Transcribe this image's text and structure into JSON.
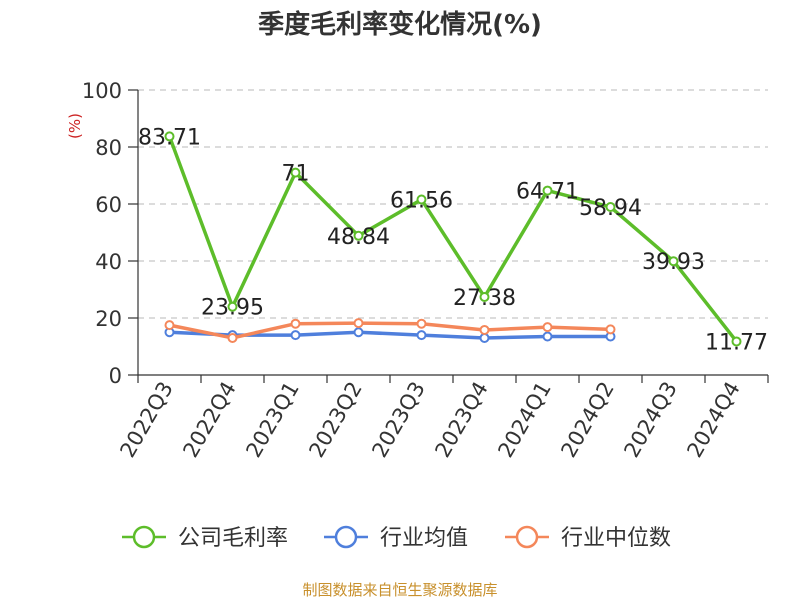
{
  "chart_data": {
    "type": "line",
    "title": "季度毛利率变化情况(%)",
    "ylabel": "(%)",
    "xlabel": "",
    "ylim": [
      0,
      100
    ],
    "yticks": [
      0,
      20,
      40,
      60,
      80,
      100
    ],
    "categories": [
      "2022Q3",
      "2022Q4",
      "2023Q1",
      "2023Q2",
      "2023Q3",
      "2023Q4",
      "2024Q1",
      "2024Q2",
      "2024Q3",
      "2024Q4"
    ],
    "series": [
      {
        "name": "公司毛利率",
        "color": "#5dbd2a",
        "values": [
          83.71,
          23.95,
          71,
          48.84,
          61.56,
          27.38,
          64.71,
          58.94,
          39.93,
          11.77
        ],
        "labels": [
          "83.71",
          "23.95",
          "71",
          "48.84",
          "61.56",
          "27.38",
          "64.71",
          "58.94",
          "39.93",
          "11.77"
        ]
      },
      {
        "name": "行业均值",
        "color": "#4f7fdc",
        "values": [
          15,
          14,
          14,
          15,
          14,
          13,
          13.5,
          13.5,
          null,
          null
        ]
      },
      {
        "name": "行业中位数",
        "color": "#f4875a",
        "values": [
          17.5,
          13,
          18,
          18.2,
          18,
          15.8,
          16.8,
          16,
          null,
          null
        ]
      }
    ],
    "grid": true,
    "legend_position": "bottom"
  },
  "footer": {
    "source": "制图数据来自恒生聚源数据库"
  }
}
